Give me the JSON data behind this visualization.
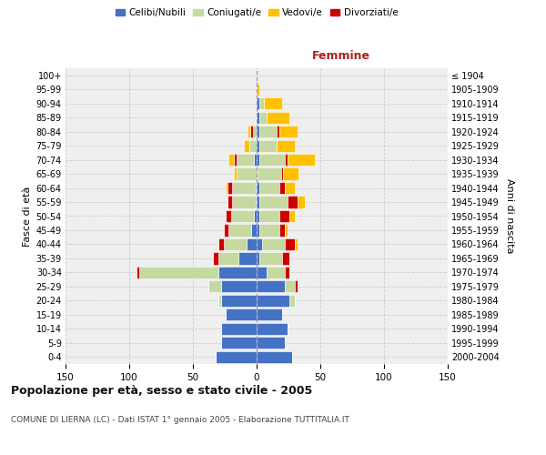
{
  "age_groups": [
    "0-4",
    "5-9",
    "10-14",
    "15-19",
    "20-24",
    "25-29",
    "30-34",
    "35-39",
    "40-44",
    "45-49",
    "50-54",
    "55-59",
    "60-64",
    "65-69",
    "70-74",
    "75-79",
    "80-84",
    "85-89",
    "90-94",
    "95-99",
    "100+"
  ],
  "birth_years": [
    "2000-2004",
    "1995-1999",
    "1990-1994",
    "1985-1989",
    "1980-1984",
    "1975-1979",
    "1970-1974",
    "1965-1969",
    "1960-1964",
    "1955-1959",
    "1950-1954",
    "1945-1949",
    "1940-1944",
    "1935-1939",
    "1930-1934",
    "1925-1929",
    "1920-1924",
    "1915-1919",
    "1910-1914",
    "1905-1909",
    "≤ 1904"
  ],
  "male": {
    "celibi": [
      32,
      28,
      28,
      24,
      28,
      28,
      30,
      14,
      8,
      4,
      2,
      1,
      1,
      0,
      2,
      0,
      0,
      0,
      0,
      0,
      0
    ],
    "coniugati": [
      0,
      0,
      0,
      0,
      2,
      10,
      62,
      16,
      18,
      18,
      18,
      18,
      18,
      16,
      14,
      6,
      3,
      1,
      0,
      0,
      0
    ],
    "vedovi": [
      0,
      0,
      0,
      0,
      0,
      0,
      0,
      0,
      0,
      0,
      0,
      0,
      1,
      2,
      4,
      4,
      2,
      0,
      0,
      0,
      0
    ],
    "divorziati": [
      0,
      0,
      0,
      0,
      0,
      0,
      2,
      4,
      4,
      4,
      4,
      4,
      4,
      0,
      2,
      0,
      2,
      0,
      0,
      0,
      0
    ]
  },
  "female": {
    "nubili": [
      28,
      22,
      24,
      20,
      26,
      22,
      8,
      2,
      4,
      2,
      2,
      2,
      2,
      1,
      2,
      2,
      2,
      2,
      2,
      0,
      0
    ],
    "coniugate": [
      0,
      0,
      0,
      0,
      4,
      8,
      14,
      18,
      18,
      16,
      16,
      22,
      16,
      18,
      20,
      14,
      14,
      6,
      4,
      0,
      0
    ],
    "vedove": [
      0,
      0,
      0,
      0,
      0,
      0,
      0,
      0,
      2,
      2,
      4,
      6,
      8,
      12,
      22,
      14,
      14,
      18,
      14,
      2,
      0
    ],
    "divorziate": [
      0,
      0,
      0,
      0,
      0,
      2,
      4,
      6,
      8,
      4,
      8,
      8,
      4,
      2,
      2,
      0,
      2,
      0,
      0,
      0,
      0
    ]
  },
  "colors": {
    "celibi": "#4472c4",
    "coniugati": "#c5d9a0",
    "vedovi": "#ffc000",
    "divorziati": "#cc0000"
  },
  "title": "Popolazione per età, sesso e stato civile - 2005",
  "subtitle": "COMUNE DI LIERNA (LC) - Dati ISTAT 1° gennaio 2005 - Elaborazione TUTTITALIA.IT",
  "xlim": 150,
  "bg_color": "#ffffff",
  "plot_bg": "#efefef",
  "grid_color": "#cccccc"
}
